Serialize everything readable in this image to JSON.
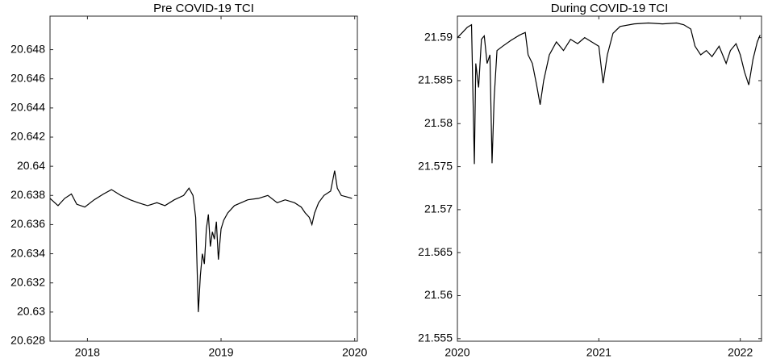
{
  "chart_data": [
    {
      "type": "line",
      "title": "Pre COVID-19 TCI",
      "color": "#000000",
      "x": [
        2017.72,
        2017.78,
        2017.83,
        2017.88,
        2017.92,
        2017.98,
        2018.05,
        2018.12,
        2018.18,
        2018.25,
        2018.32,
        2018.38,
        2018.45,
        2018.52,
        2018.58,
        2018.65,
        2018.72,
        2018.76,
        2018.79,
        2018.81,
        2018.83,
        2018.845,
        2018.86,
        2018.875,
        2018.89,
        2018.905,
        2018.92,
        2018.935,
        2018.95,
        2018.965,
        2018.98,
        2019.0,
        2019.02,
        2019.05,
        2019.1,
        2019.15,
        2019.2,
        2019.28,
        2019.35,
        2019.42,
        2019.48,
        2019.55,
        2019.6,
        2019.63,
        2019.66,
        2019.68,
        2019.7,
        2019.73,
        2019.77,
        2019.82,
        2019.85,
        2019.87,
        2019.9,
        2019.94,
        2019.98
      ],
      "values": [
        20.6378,
        20.6373,
        20.6378,
        20.6381,
        20.6374,
        20.6372,
        20.6377,
        20.6381,
        20.6384,
        20.638,
        20.6377,
        20.6375,
        20.6373,
        20.6375,
        20.6373,
        20.6377,
        20.638,
        20.6385,
        20.638,
        20.6365,
        20.63,
        20.6325,
        20.634,
        20.6333,
        20.6357,
        20.6367,
        20.6345,
        20.6355,
        20.635,
        20.6362,
        20.6336,
        20.6357,
        20.6363,
        20.6368,
        20.6373,
        20.6375,
        20.6377,
        20.6378,
        20.638,
        20.6375,
        20.6377,
        20.6375,
        20.6372,
        20.6368,
        20.6365,
        20.636,
        20.6368,
        20.6375,
        20.638,
        20.6383,
        20.6397,
        20.6385,
        20.638,
        20.6379,
        20.6378
      ],
      "xlim": [
        2017.72,
        2020.02
      ],
      "ylim": [
        20.628,
        20.6503
      ],
      "xticks": [
        2018,
        2019,
        2020
      ],
      "yticks": [
        20.628,
        20.63,
        20.632,
        20.634,
        20.636,
        20.638,
        20.64,
        20.642,
        20.644,
        20.646,
        20.648
      ]
    },
    {
      "type": "line",
      "title": "During COVID-19 TCI",
      "color": "#000000",
      "x": [
        2020.0,
        2020.03,
        2020.07,
        2020.1,
        2020.12,
        2020.13,
        2020.15,
        2020.17,
        2020.19,
        2020.21,
        2020.23,
        2020.245,
        2020.26,
        2020.28,
        2020.32,
        2020.38,
        2020.44,
        2020.48,
        2020.5,
        2020.53,
        2020.56,
        2020.585,
        2020.61,
        2020.65,
        2020.7,
        2020.75,
        2020.8,
        2020.85,
        2020.9,
        2020.95,
        2021.0,
        2021.03,
        2021.06,
        2021.1,
        2021.15,
        2021.25,
        2021.35,
        2021.45,
        2021.55,
        2021.6,
        2021.65,
        2021.68,
        2021.72,
        2021.76,
        2021.8,
        2021.85,
        2021.9,
        2021.93,
        2021.97,
        2022.0,
        2022.03,
        2022.06,
        2022.09,
        2022.12,
        2022.14
      ],
      "values": [
        21.59,
        21.5905,
        21.5912,
        21.5915,
        21.5753,
        21.587,
        21.5842,
        21.5898,
        21.5902,
        21.587,
        21.588,
        21.5754,
        21.583,
        21.5885,
        21.589,
        21.5897,
        21.5903,
        21.5906,
        21.588,
        21.587,
        21.5845,
        21.5822,
        21.585,
        21.588,
        21.5895,
        21.5885,
        21.5898,
        21.5893,
        21.59,
        21.5895,
        21.589,
        21.5847,
        21.588,
        21.5905,
        21.5913,
        21.5916,
        21.5917,
        21.5916,
        21.5917,
        21.5915,
        21.591,
        21.589,
        21.588,
        21.5885,
        21.5878,
        21.589,
        21.587,
        21.5885,
        21.5893,
        21.588,
        21.586,
        21.5845,
        21.5875,
        21.5895,
        21.5903
      ],
      "xlim": [
        2020,
        2022.15
      ],
      "ylim": [
        21.5547,
        21.5925
      ],
      "xticks": [
        2020,
        2021,
        2022
      ],
      "yticks": [
        21.555,
        21.56,
        21.565,
        21.57,
        21.575,
        21.58,
        21.585,
        21.59
      ]
    }
  ]
}
